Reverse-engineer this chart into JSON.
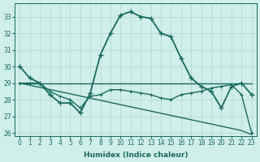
{
  "xlabel": "Humidex (Indice chaleur)",
  "ylabel": "",
  "xlim": [
    -0.5,
    23.5
  ],
  "ylim": [
    25.8,
    33.8
  ],
  "yticks": [
    26,
    27,
    28,
    29,
    30,
    31,
    32,
    33
  ],
  "xticks": [
    0,
    1,
    2,
    3,
    4,
    5,
    6,
    7,
    8,
    9,
    10,
    11,
    12,
    13,
    14,
    15,
    16,
    17,
    18,
    19,
    20,
    21,
    22,
    23
  ],
  "bg_color": "#d0eeea",
  "grid_color": "#b0d8d0",
  "line_color": "#1a6b5a",
  "series": [
    [
      30.0,
      29.3,
      29.0,
      28.3,
      27.8,
      27.8,
      27.2,
      28.4,
      30.7,
      32.0,
      33.1,
      33.3,
      33.0,
      32.9,
      32.0,
      31.8,
      30.5,
      29.3,
      28.8,
      28.5,
      27.5,
      28.8,
      29.0,
      28.3
    ],
    [
      29.0,
      29.0,
      29.0,
      29.0,
      29.0,
      29.0,
      29.0,
      29.0,
      29.0,
      29.0,
      29.0,
      29.0,
      29.0,
      29.0,
      29.0,
      29.0,
      29.0,
      29.0,
      29.0,
      29.0,
      29.0,
      29.0,
      29.0,
      29.0
    ],
    [
      29.0,
      28.87,
      28.74,
      28.61,
      28.48,
      28.35,
      28.22,
      28.09,
      27.96,
      27.83,
      27.7,
      27.57,
      27.44,
      27.31,
      27.18,
      27.05,
      26.92,
      26.79,
      26.66,
      26.53,
      26.4,
      26.27,
      26.14,
      25.9
    ],
    [
      29.0,
      29.0,
      29.0,
      28.5,
      28.2,
      28.0,
      27.5,
      28.2,
      28.3,
      28.6,
      28.6,
      28.5,
      28.4,
      28.3,
      28.1,
      28.0,
      28.3,
      28.4,
      28.5,
      28.7,
      28.8,
      28.9,
      28.3,
      26.0
    ]
  ],
  "series_styles": [
    {
      "lw": 1.3,
      "marker": "+",
      "ms": 4,
      "mew": 1.0
    },
    {
      "lw": 1.0,
      "marker": null,
      "ms": 0,
      "mew": 0.8
    },
    {
      "lw": 1.0,
      "marker": null,
      "ms": 0,
      "mew": 0.8
    },
    {
      "lw": 1.0,
      "marker": "+",
      "ms": 3,
      "mew": 0.8
    }
  ]
}
